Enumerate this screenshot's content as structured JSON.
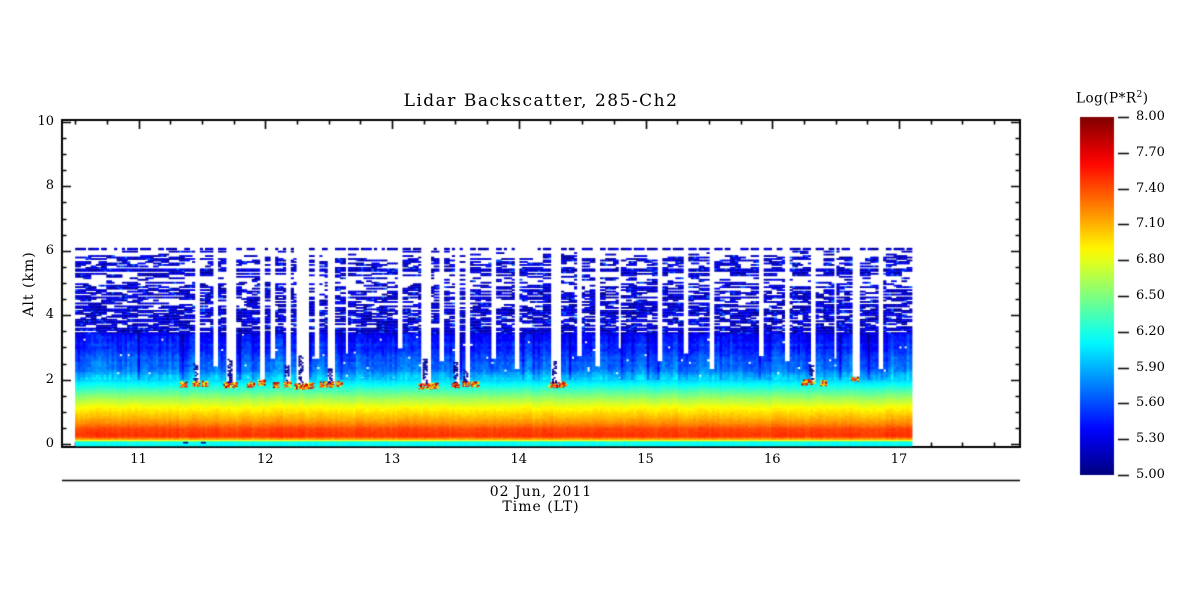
{
  "title": "Lidar Backscatter, 285-Ch2",
  "axes": {
    "x": {
      "date": "02 Jun, 2011",
      "title": "Time (LT)",
      "tick_labels": [
        "11",
        "12",
        "13",
        "14",
        "15",
        "16",
        "17"
      ],
      "tick_values": [
        11,
        12,
        13,
        14,
        15,
        16,
        17
      ],
      "minor_step": 0.25,
      "range": [
        10.4,
        17.96
      ]
    },
    "y": {
      "label": "Alt (km)",
      "tick_labels": [
        "0",
        "2",
        "4",
        "6",
        "8",
        "10"
      ],
      "tick_values": [
        0,
        2,
        4,
        6,
        8,
        10
      ],
      "minor_step": 0.5,
      "range": [
        0,
        10
      ]
    }
  },
  "colorbar": {
    "title_pre": "Log(P*R",
    "title_sup": "2",
    "title_post": ")",
    "tick_labels": [
      "8.00",
      "7.70",
      "7.40",
      "7.10",
      "6.80",
      "6.50",
      "6.20",
      "5.90",
      "5.60",
      "5.30",
      "5.00"
    ],
    "min": 5.0,
    "max": 8.0
  },
  "chart_data": {
    "type": "heatmap",
    "title": "Lidar Backscatter, 285-Ch2",
    "xlabel": "Time (LT), 02 Jun, 2011",
    "ylabel": "Alt (km)",
    "value_label": "Log(P*R2)",
    "colormap": "jet",
    "value_range": [
      5.0,
      8.0
    ],
    "x_data_range_hours": [
      10.5,
      17.09
    ],
    "y_data_range_km": [
      0.0,
      6.06
    ],
    "mean_profile": {
      "alt_km": [
        0.0,
        0.06,
        0.1,
        0.15,
        0.22,
        0.45,
        0.62,
        0.85,
        1.1,
        1.4,
        1.7,
        2.0,
        2.3,
        2.7,
        3.1,
        3.42
      ],
      "log_value": [
        6.15,
        6.5,
        6.9,
        7.25,
        7.48,
        7.42,
        7.22,
        7.05,
        6.88,
        6.6,
        6.28,
        5.95,
        5.72,
        5.58,
        5.45,
        5.38
      ]
    },
    "speckle_bands": [
      [
        3.42,
        3.7,
        0.93
      ],
      [
        3.7,
        4.0,
        0.85
      ],
      [
        4.0,
        4.3,
        0.76
      ],
      [
        4.3,
        4.62,
        0.66
      ],
      [
        4.62,
        4.85,
        0.48
      ],
      [
        4.85,
        5.02,
        0.3
      ],
      [
        5.02,
        5.18,
        0.22
      ],
      [
        5.18,
        5.32,
        0.45
      ],
      [
        5.32,
        5.4,
        0.97
      ],
      [
        5.4,
        5.52,
        0.25
      ],
      [
        5.52,
        5.78,
        0.4
      ],
      [
        5.78,
        5.98,
        0.16
      ]
    ],
    "cloud_top_dotted_line_km": 6.03,
    "persistent_layer_line_km": 5.35,
    "data_gaps": [
      [
        11.45,
        0.04,
        1.85
      ],
      [
        11.6,
        0.03,
        2.4
      ],
      [
        11.72,
        0.09,
        1.8
      ],
      [
        11.97,
        0.05,
        1.88
      ],
      [
        12.05,
        0.03,
        2.6
      ],
      [
        12.17,
        0.04,
        1.82
      ],
      [
        12.28,
        0.09,
        1.76
      ],
      [
        12.4,
        0.03,
        2.6
      ],
      [
        12.51,
        0.05,
        1.82
      ],
      [
        12.63,
        0.03,
        2.8
      ],
      [
        13.05,
        0.03,
        2.9
      ],
      [
        13.26,
        0.09,
        1.76
      ],
      [
        13.38,
        0.03,
        2.5
      ],
      [
        13.5,
        0.05,
        1.8
      ],
      [
        13.58,
        0.04,
        1.84
      ],
      [
        13.79,
        0.04,
        2.6
      ],
      [
        13.97,
        0.04,
        2.3
      ],
      [
        14.28,
        0.08,
        1.8
      ],
      [
        14.47,
        0.03,
        2.7
      ],
      [
        14.62,
        0.04,
        2.4
      ],
      [
        14.78,
        0.03,
        2.9
      ],
      [
        15.11,
        0.04,
        2.5
      ],
      [
        15.31,
        0.03,
        2.8
      ],
      [
        15.52,
        0.04,
        2.3
      ],
      [
        15.9,
        0.03,
        2.7
      ],
      [
        16.1,
        0.04,
        2.5
      ],
      [
        16.31,
        0.05,
        1.9
      ],
      [
        16.49,
        0.03,
        2.6
      ],
      [
        16.65,
        0.05,
        2.0
      ],
      [
        16.85,
        0.04,
        2.3
      ]
    ],
    "aerosol_plumes": [
      [
        11.35,
        0.05,
        1.84
      ],
      [
        11.45,
        0.05,
        1.87
      ],
      [
        11.52,
        0.04,
        1.86
      ],
      [
        11.72,
        0.1,
        1.82
      ],
      [
        11.88,
        0.05,
        1.84
      ],
      [
        11.97,
        0.06,
        1.9
      ],
      [
        12.08,
        0.04,
        1.82
      ],
      [
        12.17,
        0.05,
        1.84
      ],
      [
        12.28,
        0.1,
        1.78
      ],
      [
        12.35,
        0.05,
        1.8
      ],
      [
        12.45,
        0.04,
        1.84
      ],
      [
        12.51,
        0.06,
        1.84
      ],
      [
        12.58,
        0.04,
        1.86
      ],
      [
        13.26,
        0.1,
        1.78
      ],
      [
        13.33,
        0.05,
        1.8
      ],
      [
        13.5,
        0.06,
        1.82
      ],
      [
        13.58,
        0.05,
        1.86
      ],
      [
        13.65,
        0.05,
        1.84
      ],
      [
        14.28,
        0.09,
        1.82
      ],
      [
        14.35,
        0.04,
        1.84
      ],
      [
        16.25,
        0.04,
        1.9
      ],
      [
        16.31,
        0.06,
        1.92
      ],
      [
        16.4,
        0.04,
        1.88
      ],
      [
        16.65,
        0.06,
        2.02
      ]
    ],
    "dark_specks": [
      [
        11.45,
        1.95,
        2.45
      ],
      [
        11.72,
        1.9,
        2.6
      ],
      [
        12.17,
        1.9,
        2.4
      ],
      [
        12.28,
        1.85,
        2.7
      ],
      [
        12.51,
        1.9,
        2.3
      ],
      [
        13.26,
        1.85,
        2.6
      ],
      [
        13.5,
        1.9,
        2.5
      ],
      [
        13.58,
        1.92,
        2.3
      ],
      [
        14.28,
        1.88,
        2.55
      ],
      [
        16.31,
        2.0,
        2.4
      ],
      [
        11.37,
        0.02,
        0.06
      ],
      [
        11.51,
        0.02,
        0.06
      ]
    ]
  }
}
